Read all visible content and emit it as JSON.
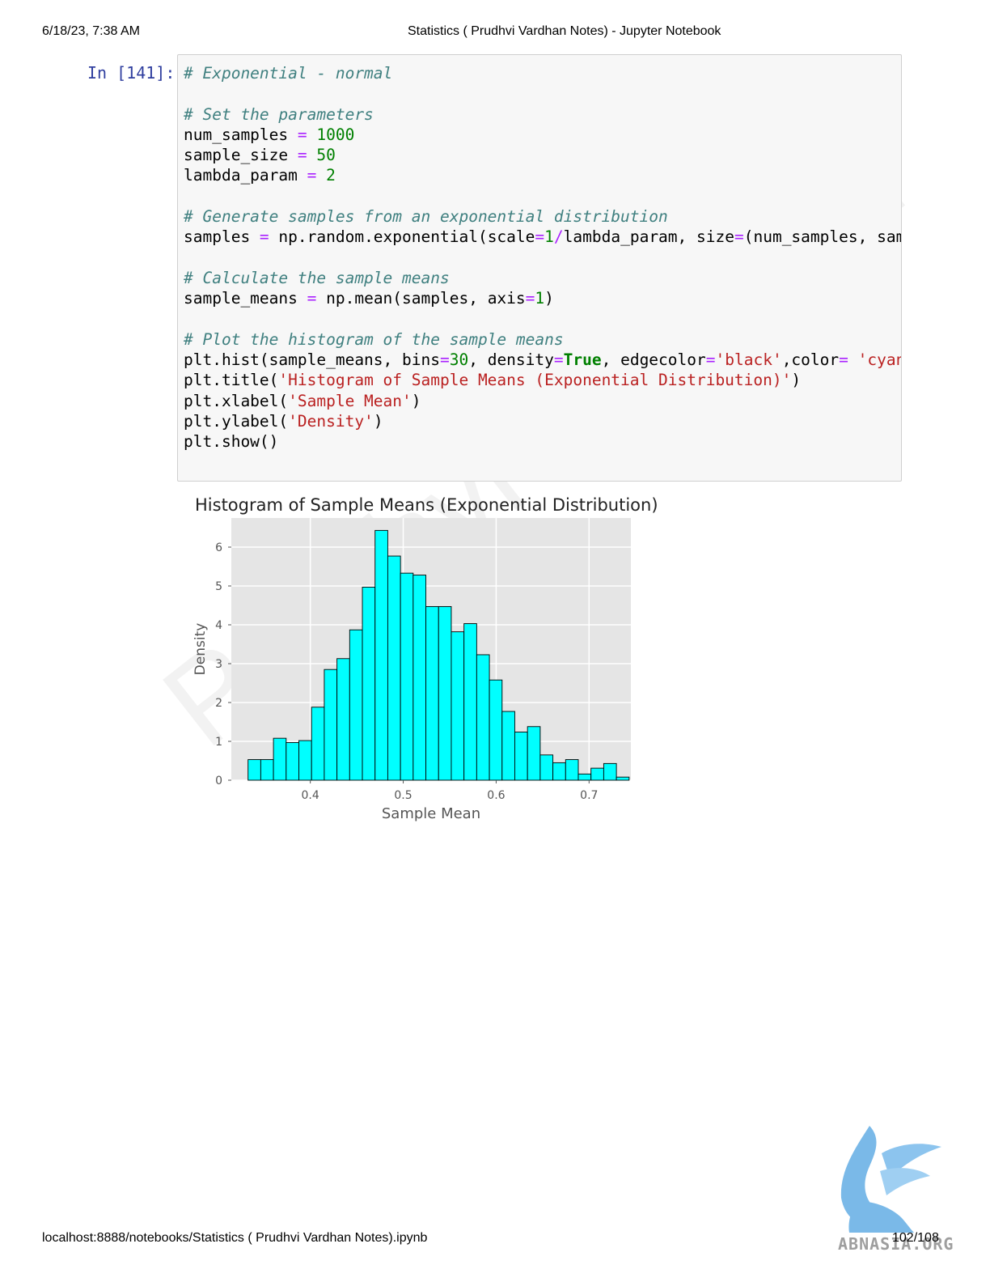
{
  "header": {
    "date": "6/18/23, 7:38 AM",
    "title": "Statistics ( Prudhvi Vardhan Notes) - Jupyter Notebook"
  },
  "cell": {
    "prompt": "In [141]:",
    "code_lines": [
      [
        {
          "t": "# Exponential - normal",
          "c": "cm"
        }
      ],
      [],
      [
        {
          "t": "# Set the parameters",
          "c": "cm"
        }
      ],
      [
        {
          "t": "num_samples ",
          "c": "tx"
        },
        {
          "t": "=",
          "c": "op"
        },
        {
          "t": " ",
          "c": "tx"
        },
        {
          "t": "1000",
          "c": "nm"
        }
      ],
      [
        {
          "t": "sample_size ",
          "c": "tx"
        },
        {
          "t": "=",
          "c": "op"
        },
        {
          "t": " ",
          "c": "tx"
        },
        {
          "t": "50",
          "c": "nm"
        }
      ],
      [
        {
          "t": "lambda_param ",
          "c": "tx"
        },
        {
          "t": "=",
          "c": "op"
        },
        {
          "t": " ",
          "c": "tx"
        },
        {
          "t": "2",
          "c": "nm"
        }
      ],
      [],
      [
        {
          "t": "# Generate samples from an exponential distribution",
          "c": "cm"
        }
      ],
      [
        {
          "t": "samples ",
          "c": "tx"
        },
        {
          "t": "=",
          "c": "op"
        },
        {
          "t": " np.random.exponential(scale",
          "c": "tx"
        },
        {
          "t": "=",
          "c": "op"
        },
        {
          "t": "1",
          "c": "nm"
        },
        {
          "t": "/",
          "c": "op"
        },
        {
          "t": "lambda_param, size",
          "c": "tx"
        },
        {
          "t": "=",
          "c": "op"
        },
        {
          "t": "(num_samples, sampl",
          "c": "tx"
        }
      ],
      [],
      [
        {
          "t": "# Calculate the sample means",
          "c": "cm"
        }
      ],
      [
        {
          "t": "sample_means ",
          "c": "tx"
        },
        {
          "t": "=",
          "c": "op"
        },
        {
          "t": " np.mean(samples, axis",
          "c": "tx"
        },
        {
          "t": "=",
          "c": "op"
        },
        {
          "t": "1",
          "c": "nm"
        },
        {
          "t": ")",
          "c": "tx"
        }
      ],
      [],
      [
        {
          "t": "# Plot the histogram of the sample means",
          "c": "cm"
        }
      ],
      [
        {
          "t": "plt.hist(sample_means, bins",
          "c": "tx"
        },
        {
          "t": "=",
          "c": "op"
        },
        {
          "t": "30",
          "c": "nm"
        },
        {
          "t": ", density",
          "c": "tx"
        },
        {
          "t": "=",
          "c": "op"
        },
        {
          "t": "True",
          "c": "kw"
        },
        {
          "t": ", edgecolor",
          "c": "tx"
        },
        {
          "t": "=",
          "c": "op"
        },
        {
          "t": "'black'",
          "c": "st"
        },
        {
          "t": ",color",
          "c": "tx"
        },
        {
          "t": "=",
          "c": "op"
        },
        {
          "t": " ",
          "c": "tx"
        },
        {
          "t": "'cyan'",
          "c": "st"
        },
        {
          "t": ")",
          "c": "tx"
        }
      ],
      [
        {
          "t": "plt.title(",
          "c": "tx"
        },
        {
          "t": "'Histogram of Sample Means (Exponential Distribution)'",
          "c": "st"
        },
        {
          "t": ")",
          "c": "tx"
        }
      ],
      [
        {
          "t": "plt.xlabel(",
          "c": "tx"
        },
        {
          "t": "'Sample Mean'",
          "c": "st"
        },
        {
          "t": ")",
          "c": "tx"
        }
      ],
      [
        {
          "t": "plt.ylabel(",
          "c": "tx"
        },
        {
          "t": "'Density'",
          "c": "st"
        },
        {
          "t": ")",
          "c": "tx"
        }
      ],
      [
        {
          "t": "plt.show()",
          "c": "tx"
        }
      ]
    ]
  },
  "chart_data": {
    "type": "bar",
    "title": "Histogram of Sample Means (Exponential Distribution)",
    "xlabel": "Sample Mean",
    "ylabel": "Density",
    "xlim": [
      0.315,
      0.745
    ],
    "ylim": [
      0,
      6.75
    ],
    "xticks": [
      0.4,
      0.5,
      0.6,
      0.7
    ],
    "xtick_labels": [
      "0.4",
      "0.5",
      "0.6",
      "0.7"
    ],
    "yticks": [
      0,
      1,
      2,
      3,
      4,
      5,
      6
    ],
    "ytick_labels": [
      "0",
      "1",
      "2",
      "3",
      "4",
      "5",
      "6"
    ],
    "grid": true,
    "bar_color": "#00ffff",
    "edge_color": "#000000",
    "bin_start": 0.333,
    "bin_width": 0.01367,
    "values": [
      0.53,
      0.53,
      1.08,
      0.97,
      1.02,
      1.88,
      2.85,
      3.13,
      3.87,
      4.97,
      6.43,
      5.77,
      5.33,
      5.28,
      4.47,
      4.47,
      3.82,
      4.03,
      3.23,
      2.58,
      1.77,
      1.24,
      1.38,
      0.65,
      0.45,
      0.53,
      0.16,
      0.31,
      0.43,
      0.08
    ]
  },
  "watermark": "Prudhvi Vardhan",
  "logo": {
    "text": "ABNASIA.ORG"
  },
  "footer": {
    "url": "localhost:8888/notebooks/Statistics ( Prudhvi Vardhan Notes).ipynb",
    "page": "102/108"
  }
}
